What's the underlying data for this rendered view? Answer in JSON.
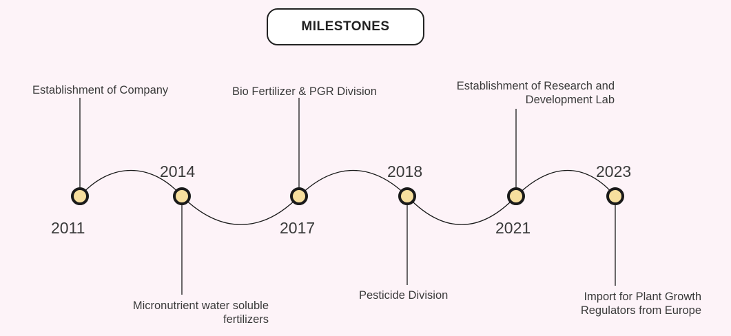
{
  "title": "MILESTONES",
  "colors": {
    "background": "#fdf3f8",
    "node_fill": "#f7df9e",
    "line": "#1a1a1a",
    "text": "#3a3a3a"
  },
  "milestones": [
    {
      "year": "2011",
      "lines": [
        "Establishment of Company"
      ]
    },
    {
      "year": "2014",
      "lines": [
        "Micronutrient water soluble",
        "fertilizers"
      ]
    },
    {
      "year": "2017",
      "lines": [
        "Bio Fertilizer & PGR Division"
      ]
    },
    {
      "year": "2018",
      "lines": [
        "Pesticide Division"
      ]
    },
    {
      "year": "2021",
      "lines": [
        "Establishment of Research and",
        "Development Lab"
      ]
    },
    {
      "year": "2023",
      "lines": [
        "Import for Plant Growth",
        "Regulators from Europe"
      ]
    }
  ]
}
